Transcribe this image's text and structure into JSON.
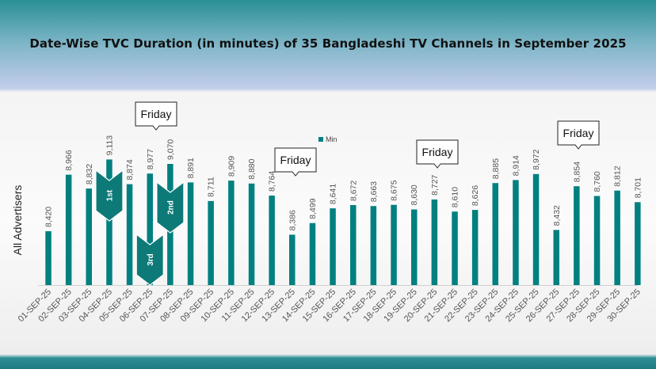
{
  "title": "Date-Wise TVC Duration (in minutes) of 35 Bangladeshi TV Channels in September 2025",
  "colors": {
    "bar": "#008080",
    "rank_marker": "#0e7a78"
  },
  "chart_data": {
    "type": "bar",
    "ylabel": "All Advertisers",
    "ylim": [
      7900,
      9200
    ],
    "legend": {
      "position": "top-center",
      "entries": [
        "Min"
      ]
    },
    "grid": false,
    "series": [
      {
        "name": "Min",
        "categories": [
          "01-SEP-25",
          "02-SEP-25",
          "03-SEP-25",
          "04-SEP-25",
          "05-SEP-25",
          "06-SEP-25",
          "07-SEP-25",
          "08-SEP-25",
          "09-SEP-25",
          "10-SEP-25",
          "11-SEP-25",
          "12-SEP-25",
          "13-SEP-25",
          "14-SEP-25",
          "15-SEP-25",
          "16-SEP-25",
          "17-SEP-25",
          "18-SEP-25",
          "19-SEP-25",
          "20-SEP-25",
          "21-SEP-25",
          "22-SEP-25",
          "23-SEP-25",
          "24-SEP-25",
          "25-SEP-25",
          "26-SEP-25",
          "27-SEP-25",
          "28-SEP-25",
          "29-SEP-25",
          "30-SEP-25"
        ],
        "values": [
          8420,
          8966,
          8832,
          9113,
          8874,
          8977,
          9070,
          8891,
          8711,
          8909,
          8880,
          8764,
          8386,
          8499,
          8641,
          8672,
          8663,
          8675,
          8630,
          8727,
          8610,
          8626,
          8885,
          8914,
          8972,
          8432,
          8854,
          8760,
          8812,
          8701
        ],
        "value_labels": [
          "8,420",
          "8,966",
          "8,832",
          "9,113",
          "8,874",
          "8,977",
          "9,070",
          "8,891",
          "8,711",
          "8,909",
          "8,880",
          "8,764",
          "8,386",
          "8,499",
          "8,641",
          "8,672",
          "8,663",
          "8,675",
          "8,630",
          "8,727",
          "8,610",
          "8,626",
          "8,885",
          "8,914",
          "8,972",
          "8,432",
          "8,854",
          "8,760",
          "8,812",
          "8,701"
        ]
      }
    ],
    "annotations": [
      {
        "text": "Friday",
        "category_index": 5
      },
      {
        "text": "Friday",
        "category_index": 12
      },
      {
        "text": "Friday",
        "category_index": 19
      },
      {
        "text": "Friday",
        "category_index": 26
      }
    ],
    "rank_markers": [
      {
        "text": "1st",
        "category_index": 3
      },
      {
        "text": "2nd",
        "category_index": 6
      },
      {
        "text": "3rd",
        "category_index": 5
      }
    ]
  }
}
